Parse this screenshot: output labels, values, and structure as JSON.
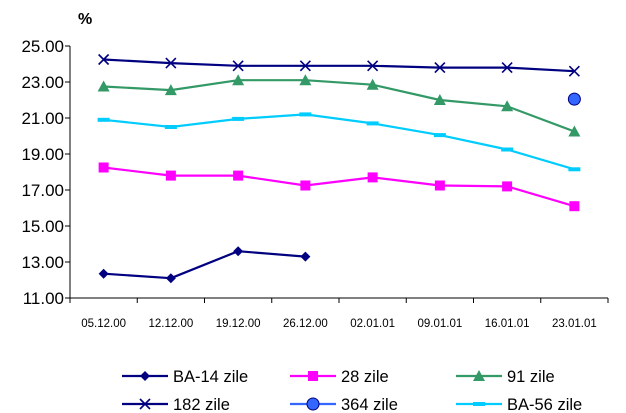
{
  "chart_data": {
    "type": "line",
    "ylabel": "%",
    "ylim": [
      11,
      25
    ],
    "yticks": [
      "25.00",
      "23.00",
      "21.00",
      "19.00",
      "17.00",
      "15.00",
      "13.00",
      "11.00"
    ],
    "categories": [
      "05.12.00",
      "12.12.00",
      "19.12.00",
      "26.12.00",
      "02.01.01",
      "09.01.01",
      "16.01.01",
      "23.01.01"
    ],
    "grid": false,
    "legend_position": "bottom",
    "series": [
      {
        "name": "BA-14 zile",
        "color": "#000080",
        "marker": "diamond",
        "values": [
          12.35,
          12.1,
          13.6,
          13.3,
          null,
          null,
          null,
          null
        ]
      },
      {
        "name": "28 zile",
        "color": "#ff00ff",
        "marker": "square",
        "values": [
          18.25,
          17.8,
          17.8,
          17.25,
          17.7,
          17.25,
          17.2,
          16.1
        ]
      },
      {
        "name": "91 zile",
        "color": "#339966",
        "marker": "triangle",
        "values": [
          22.75,
          22.55,
          23.1,
          23.1,
          22.85,
          22.0,
          21.65,
          20.25
        ]
      },
      {
        "name": "182 zile",
        "color": "#000080",
        "marker": "x",
        "values": [
          24.25,
          24.05,
          23.9,
          23.9,
          23.9,
          23.8,
          23.8,
          23.6
        ]
      },
      {
        "name": "364 zile",
        "color": "#3366ff",
        "marker": "circle",
        "values": [
          null,
          null,
          null,
          null,
          null,
          null,
          null,
          22.05
        ]
      },
      {
        "name": "BA-56 zile",
        "color": "#00ccff",
        "marker": "dash",
        "values": [
          20.9,
          20.5,
          20.95,
          21.2,
          20.7,
          20.05,
          19.25,
          18.15
        ]
      }
    ]
  }
}
